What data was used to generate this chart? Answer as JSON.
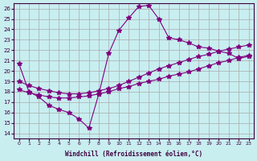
{
  "xlabel": "Windchill (Refroidissement éolien,°C)",
  "ylabel": "",
  "bg_color": "#c8eef0",
  "line_color": "#800080",
  "grid_color": "#aaaaaa",
  "xlim": [
    -0.5,
    23.5
  ],
  "ylim": [
    13.5,
    26.5
  ],
  "xticks": [
    0,
    1,
    2,
    3,
    4,
    5,
    6,
    7,
    8,
    9,
    10,
    11,
    12,
    13,
    14,
    15,
    16,
    17,
    18,
    19,
    20,
    21,
    22,
    23
  ],
  "yticks": [
    14,
    15,
    16,
    17,
    18,
    19,
    20,
    21,
    22,
    23,
    24,
    25,
    26
  ],
  "series1_x": [
    0,
    1,
    2,
    3,
    4,
    5,
    6,
    7,
    8,
    9,
    10,
    11,
    12,
    13,
    14,
    15,
    16,
    17,
    18,
    19,
    20,
    21,
    22,
    23
  ],
  "series1_y": [
    20.7,
    18.0,
    17.5,
    16.7,
    16.3,
    16.0,
    15.4,
    14.5,
    17.8,
    21.7,
    23.9,
    25.1,
    26.2,
    26.3,
    25.0,
    23.2,
    23.0,
    22.7,
    22.3,
    22.2,
    21.9,
    21.7,
    21.2,
    21.4
  ],
  "series2_x": [
    0,
    1,
    2,
    3,
    4,
    5,
    6,
    7,
    8,
    9,
    10,
    11,
    12,
    13,
    14,
    15,
    16,
    17,
    18,
    19,
    20,
    21,
    22,
    23
  ],
  "series2_y": [
    18.2,
    17.9,
    17.7,
    17.5,
    17.4,
    17.4,
    17.5,
    17.6,
    17.8,
    18.0,
    18.3,
    18.5,
    18.8,
    19.0,
    19.2,
    19.5,
    19.7,
    19.9,
    20.2,
    20.5,
    20.8,
    21.0,
    21.3,
    21.5
  ],
  "series3_x": [
    0,
    1,
    2,
    3,
    4,
    5,
    6,
    7,
    8,
    9,
    10,
    11,
    12,
    13,
    14,
    15,
    16,
    17,
    18,
    19,
    20,
    21,
    22,
    23
  ],
  "series3_y": [
    19.0,
    18.6,
    18.3,
    18.1,
    17.9,
    17.8,
    17.8,
    17.9,
    18.1,
    18.3,
    18.6,
    19.0,
    19.4,
    19.8,
    20.2,
    20.5,
    20.8,
    21.1,
    21.4,
    21.6,
    21.9,
    22.1,
    22.3,
    22.5
  ]
}
